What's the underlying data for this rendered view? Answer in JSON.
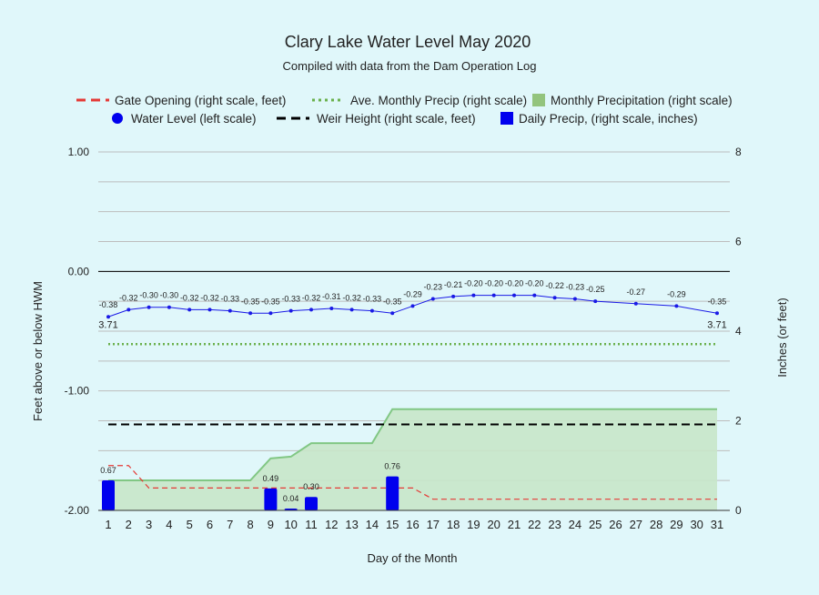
{
  "chart_data": {
    "type": "line",
    "title": "Clary Lake Water Level May 2020",
    "subtitle": "Compiled with data from the Dam Operation Log",
    "xlabel": "Day of the Month",
    "ylabel_left": "Feet above or below HWM",
    "ylabel_right": "Inches (or feet)",
    "left_ylim": [
      -2,
      1
    ],
    "left_ticks": [
      "1.00",
      "0.00",
      "-1.00",
      "-2.00"
    ],
    "right_ylim": [
      0,
      8
    ],
    "right_ticks": [
      "8",
      "6",
      "4",
      "2",
      "0"
    ],
    "grid": true,
    "legend_position": "top",
    "days": [
      "1",
      "2",
      "3",
      "4",
      "5",
      "6",
      "7",
      "8",
      "9",
      "10",
      "11",
      "12",
      "13",
      "14",
      "15",
      "16",
      "17",
      "18",
      "19",
      "20",
      "21",
      "22",
      "23",
      "24",
      "25",
      "26",
      "27",
      "28",
      "29",
      "30",
      "31"
    ],
    "legend": {
      "gate": "Gate Opening (right scale, feet)",
      "ave": "Ave. Monthly Precip (right scale)",
      "monthly": "Monthly Precipitation (right scale)",
      "water": "Water Level (left scale)",
      "weir": "Weir Height (right scale, feet)",
      "daily": "Daily Precip, (right scale, inches)"
    },
    "colors": {
      "water": "#1a1ae6",
      "gate": "#e53935",
      "ave": "#6ab04c",
      "monthly_fill": "#c8e6c9",
      "monthly_line": "#81c784",
      "weir": "#000000",
      "daily": "#0000ee"
    },
    "series": [
      {
        "name": "Water Level (left scale)",
        "axis": "left",
        "x": [
          1,
          2,
          3,
          4,
          5,
          6,
          7,
          8,
          9,
          10,
          11,
          12,
          13,
          14,
          15,
          16,
          17,
          18,
          19,
          20,
          21,
          22,
          23,
          24,
          25,
          27,
          29,
          31
        ],
        "values": [
          -0.38,
          -0.32,
          -0.3,
          -0.3,
          -0.32,
          -0.32,
          -0.33,
          -0.35,
          -0.35,
          -0.33,
          -0.32,
          -0.31,
          -0.32,
          -0.33,
          -0.35,
          -0.29,
          -0.23,
          -0.21,
          -0.2,
          -0.2,
          -0.2,
          -0.2,
          -0.22,
          -0.23,
          -0.25,
          -0.27,
          -0.29,
          -0.35
        ],
        "labels": [
          "-0.38",
          "-0.32",
          "-0.30",
          "-0.30",
          "-0.32",
          "-0.32",
          "-0.33",
          "-0.35",
          "-0.35",
          "-0.33",
          "-0.32",
          "-0.31",
          "-0.32",
          "-0.33",
          "-0.35",
          "-0.29",
          "-0.23",
          "-0.21",
          "-0.20",
          "-0.20",
          "-0.20",
          "-0.20",
          "-0.22",
          "-0.23",
          "-0.25",
          "-0.27",
          "-0.29",
          "-0.35"
        ]
      },
      {
        "name": "Gate Opening (right scale, feet)",
        "axis": "right",
        "x": [
          1,
          2,
          3,
          4,
          5,
          6,
          7,
          8,
          9,
          10,
          11,
          12,
          13,
          14,
          15,
          16,
          17,
          18,
          19,
          20,
          21,
          22,
          23,
          24,
          25,
          26,
          27,
          28,
          29,
          30,
          31
        ],
        "values": [
          1.0,
          1.0,
          0.5,
          0.5,
          0.5,
          0.5,
          0.5,
          0.5,
          0.5,
          0.5,
          0.5,
          0.5,
          0.5,
          0.5,
          0.5,
          0.5,
          0.25,
          0.25,
          0.25,
          0.25,
          0.25,
          0.25,
          0.25,
          0.25,
          0.25,
          0.25,
          0.25,
          0.25,
          0.25,
          0.25,
          0.25
        ]
      },
      {
        "name": "Ave. Monthly Precip (right scale)",
        "axis": "right",
        "x": [
          1,
          31
        ],
        "values": [
          3.71,
          3.71
        ],
        "labels": [
          "3.71",
          "3.71"
        ]
      },
      {
        "name": "Monthly Precipitation (right scale)",
        "axis": "right",
        "x": [
          1,
          2,
          3,
          4,
          5,
          6,
          7,
          8,
          9,
          10,
          11,
          12,
          13,
          14,
          15,
          16,
          17,
          18,
          19,
          20,
          21,
          22,
          23,
          24,
          25,
          26,
          27,
          28,
          29,
          30,
          31
        ],
        "values": [
          0.67,
          0.67,
          0.67,
          0.67,
          0.67,
          0.67,
          0.67,
          0.67,
          1.16,
          1.2,
          1.5,
          1.5,
          1.5,
          1.5,
          2.26,
          2.26,
          2.26,
          2.26,
          2.26,
          2.26,
          2.26,
          2.26,
          2.26,
          2.26,
          2.26,
          2.26,
          2.26,
          2.26,
          2.26,
          2.26,
          2.26
        ]
      },
      {
        "name": "Weir Height (right scale, feet)",
        "axis": "right",
        "x": [
          1,
          31
        ],
        "values": [
          1.92,
          1.92
        ]
      },
      {
        "name": "Daily Precip, (right scale, inches)",
        "axis": "right",
        "x": [
          1,
          9,
          10,
          11,
          15
        ],
        "values": [
          0.67,
          0.49,
          0.04,
          0.3,
          0.76
        ],
        "labels": [
          "0.67",
          "0.49",
          "0.04",
          "0.30",
          "0.76"
        ]
      }
    ]
  }
}
